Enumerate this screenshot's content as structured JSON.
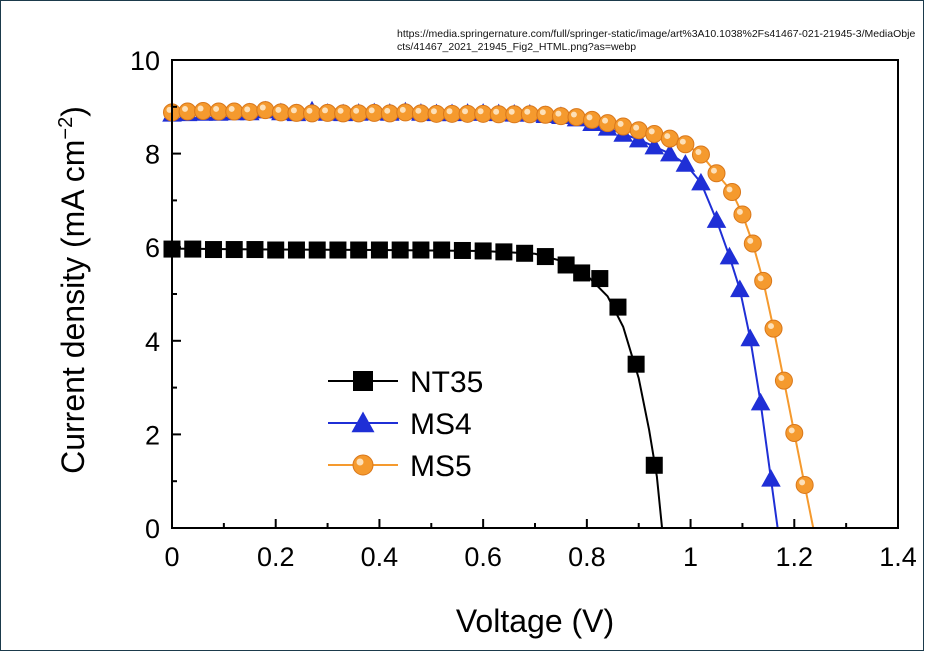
{
  "source_url": "https://media.springernature.com/full/springer-static/image/art%3A10.1038%2Fs41467-021-21945-3/MediaObjects/41467_2021_21945_Fig2_HTML.png?as=webp",
  "chart_data": {
    "type": "line",
    "title": "",
    "xlabel": "Voltage (V)",
    "ylabel_main": "Current density (mA cm",
    "ylabel_sup": "−2",
    "ylabel_close": ")",
    "xlim": [
      0,
      1.4
    ],
    "ylim": [
      0,
      10
    ],
    "x_ticks": [
      0,
      0.2,
      0.4,
      0.6,
      0.8,
      1.0,
      1.2,
      1.4
    ],
    "x_tick_labels": [
      "0",
      "0.2",
      "0.4",
      "0.6",
      "0.8",
      "1",
      "1.2",
      "1.4"
    ],
    "y_ticks": [
      0,
      2,
      4,
      6,
      8,
      10
    ],
    "y_tick_labels": [
      "0",
      "2",
      "4",
      "6",
      "8",
      "10"
    ],
    "grid": false,
    "legend_position": "lower-left",
    "series": [
      {
        "name": "NT35",
        "color": "#000000",
        "marker": "square",
        "x": [
          0.0,
          0.04,
          0.08,
          0.12,
          0.16,
          0.2,
          0.24,
          0.28,
          0.32,
          0.36,
          0.4,
          0.44,
          0.48,
          0.52,
          0.56,
          0.6,
          0.64,
          0.68,
          0.72,
          0.76,
          0.79,
          0.825,
          0.86,
          0.895,
          0.93
        ],
        "y": [
          5.96,
          5.96,
          5.95,
          5.95,
          5.95,
          5.94,
          5.94,
          5.94,
          5.94,
          5.94,
          5.94,
          5.94,
          5.94,
          5.94,
          5.93,
          5.92,
          5.9,
          5.87,
          5.8,
          5.62,
          5.45,
          5.33,
          4.72,
          3.5,
          1.34
        ],
        "curve_x": [
          0.0,
          0.2,
          0.4,
          0.6,
          0.7,
          0.76,
          0.8,
          0.84,
          0.87,
          0.9,
          0.92,
          0.935,
          0.945
        ],
        "curve_y": [
          5.97,
          5.95,
          5.94,
          5.92,
          5.86,
          5.68,
          5.4,
          4.95,
          4.3,
          3.2,
          2.1,
          1.1,
          0.0
        ]
      },
      {
        "name": "MS4",
        "color": "#1f2fd6",
        "marker": "triangle",
        "x": [
          0.0,
          0.03,
          0.06,
          0.09,
          0.12,
          0.15,
          0.18,
          0.21,
          0.24,
          0.27,
          0.3,
          0.33,
          0.36,
          0.39,
          0.42,
          0.45,
          0.48,
          0.51,
          0.54,
          0.57,
          0.6,
          0.63,
          0.66,
          0.69,
          0.72,
          0.75,
          0.78,
          0.81,
          0.84,
          0.87,
          0.9,
          0.93,
          0.96,
          0.99,
          1.02,
          1.05,
          1.075,
          1.095,
          1.115,
          1.135,
          1.155
        ],
        "y": [
          8.85,
          8.86,
          8.87,
          8.87,
          8.88,
          8.88,
          8.92,
          8.88,
          8.86,
          8.92,
          8.87,
          8.86,
          8.87,
          8.88,
          8.87,
          8.9,
          8.87,
          8.86,
          8.86,
          8.87,
          8.87,
          8.86,
          8.85,
          8.85,
          8.82,
          8.8,
          8.75,
          8.65,
          8.55,
          8.42,
          8.3,
          8.15,
          8.0,
          7.78,
          7.38,
          6.58,
          5.8,
          5.1,
          4.05,
          2.68,
          1.05
        ]
      },
      {
        "name": "MS5",
        "color": "#f59a2e",
        "marker": "circle",
        "x": [
          0.0,
          0.03,
          0.06,
          0.09,
          0.12,
          0.15,
          0.18,
          0.21,
          0.24,
          0.27,
          0.3,
          0.33,
          0.36,
          0.39,
          0.42,
          0.45,
          0.48,
          0.51,
          0.54,
          0.57,
          0.6,
          0.63,
          0.66,
          0.69,
          0.72,
          0.75,
          0.78,
          0.81,
          0.84,
          0.87,
          0.9,
          0.93,
          0.96,
          0.99,
          1.02,
          1.05,
          1.08,
          1.1,
          1.12,
          1.14,
          1.16,
          1.18,
          1.2,
          1.22
        ],
        "y": [
          8.88,
          8.9,
          8.91,
          8.9,
          8.9,
          8.89,
          8.93,
          8.88,
          8.87,
          8.86,
          8.87,
          8.86,
          8.86,
          8.87,
          8.86,
          8.88,
          8.86,
          8.85,
          8.85,
          8.85,
          8.85,
          8.84,
          8.84,
          8.84,
          8.83,
          8.8,
          8.78,
          8.72,
          8.65,
          8.58,
          8.5,
          8.42,
          8.32,
          8.2,
          7.98,
          7.58,
          7.18,
          6.7,
          6.08,
          5.28,
          4.26,
          3.15,
          2.03,
          0.92
        ]
      }
    ]
  }
}
